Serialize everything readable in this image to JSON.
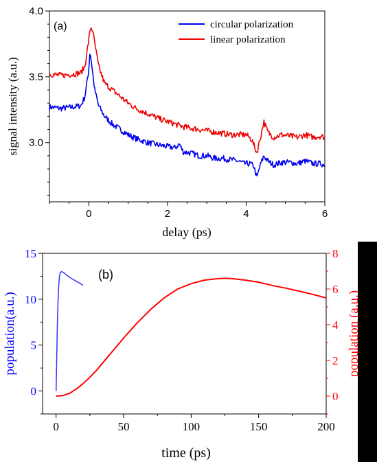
{
  "chart_data": [
    {
      "type": "line",
      "panel_label": "(a)",
      "xlabel": "delay (ps)",
      "ylabel": "signal intensity (a.u.)",
      "xlim": [
        -1,
        6
      ],
      "ylim": [
        2.55,
        4.0
      ],
      "xticks": [
        0,
        2,
        4,
        6
      ],
      "yticks": [
        3.0,
        3.5,
        4.0
      ],
      "xtick_labels": [
        "0",
        "2",
        "4",
        "6"
      ],
      "ytick_labels": [
        "3.0",
        "3.5",
        "4.0"
      ],
      "legend_position": "top-right",
      "grid": false,
      "series": [
        {
          "name": "circular polarization",
          "color": "#0000ee",
          "x": [
            -1.0,
            -0.7,
            -0.4,
            -0.2,
            -0.1,
            0.0,
            0.03,
            0.08,
            0.15,
            0.25,
            0.4,
            0.6,
            0.8,
            1.0,
            1.2,
            1.5,
            1.8,
            2.0,
            2.2,
            2.3,
            2.4,
            2.6,
            2.8,
            3.0,
            3.2,
            3.4,
            3.6,
            3.8,
            3.95,
            4.1,
            4.2,
            4.27,
            4.35,
            4.45,
            4.55,
            4.7,
            4.9,
            5.1,
            5.3,
            5.5,
            5.7,
            5.9,
            6.0
          ],
          "y": [
            3.27,
            3.26,
            3.27,
            3.28,
            3.35,
            3.55,
            3.7,
            3.58,
            3.4,
            3.28,
            3.2,
            3.14,
            3.1,
            3.06,
            3.03,
            3.0,
            2.98,
            2.97,
            2.96,
            2.99,
            2.93,
            2.92,
            2.9,
            2.9,
            2.88,
            2.88,
            2.87,
            2.86,
            2.84,
            2.84,
            2.82,
            2.73,
            2.82,
            2.9,
            2.86,
            2.83,
            2.85,
            2.85,
            2.84,
            2.86,
            2.84,
            2.84,
            2.83
          ]
        },
        {
          "name": "linear polarization",
          "color": "#ee0000",
          "x": [
            -1.0,
            -0.7,
            -0.4,
            -0.2,
            -0.1,
            0.0,
            0.05,
            0.1,
            0.18,
            0.25,
            0.4,
            0.6,
            0.8,
            1.0,
            1.2,
            1.5,
            1.8,
            2.0,
            2.2,
            2.4,
            2.6,
            2.8,
            3.0,
            3.2,
            3.4,
            3.6,
            3.8,
            4.0,
            4.15,
            4.27,
            4.35,
            4.45,
            4.55,
            4.7,
            4.9,
            5.1,
            5.3,
            5.5,
            5.7,
            5.9,
            6.0
          ],
          "y": [
            3.52,
            3.51,
            3.52,
            3.53,
            3.58,
            3.78,
            3.88,
            3.85,
            3.7,
            3.58,
            3.45,
            3.4,
            3.35,
            3.3,
            3.26,
            3.22,
            3.18,
            3.16,
            3.14,
            3.12,
            3.11,
            3.1,
            3.09,
            3.08,
            3.07,
            3.06,
            3.06,
            3.06,
            3.02,
            2.92,
            3.02,
            3.16,
            3.08,
            3.04,
            3.06,
            3.05,
            3.04,
            3.06,
            3.04,
            3.05,
            3.04
          ]
        }
      ]
    },
    {
      "type": "line",
      "panel_label": "(b)",
      "xlabel": "time (ps)",
      "ylabel_left": "population(a.u.)",
      "ylabel_right": "population (a.u.)",
      "xlim": [
        -10,
        200
      ],
      "ylim_left": [
        -2.5,
        15
      ],
      "ylim_right": [
        -1,
        8
      ],
      "xticks": [
        0,
        50,
        100,
        150,
        200
      ],
      "yticks_left": [
        0,
        5,
        10,
        15
      ],
      "yticks_right": [
        0,
        2,
        4,
        6,
        8
      ],
      "xtick_labels": [
        "0",
        "50",
        "100",
        "150",
        "200"
      ],
      "ytick_labels_left": [
        "0",
        "5",
        "10",
        "15"
      ],
      "ytick_labels_right": [
        "0",
        "2",
        "4",
        "6",
        "8"
      ],
      "grid": false,
      "series": [
        {
          "axis": "left",
          "color": "#3333ff",
          "x": [
            0,
            0.5,
            1,
            1.5,
            2,
            2.5,
            3,
            4,
            5,
            6,
            8,
            10,
            12,
            15,
            18,
            20
          ],
          "y": [
            0,
            4,
            7.5,
            10,
            11.6,
            12.5,
            12.9,
            13.0,
            12.95,
            12.85,
            12.6,
            12.4,
            12.2,
            11.95,
            11.7,
            11.5
          ]
        },
        {
          "axis": "right",
          "color": "#ff0000",
          "x": [
            0,
            5,
            10,
            15,
            20,
            25,
            30,
            40,
            50,
            60,
            70,
            80,
            90,
            100,
            110,
            120,
            125,
            130,
            140,
            150,
            160,
            170,
            180,
            190,
            200
          ],
          "y": [
            0,
            0.03,
            0.15,
            0.4,
            0.7,
            1.05,
            1.45,
            2.35,
            3.25,
            4.1,
            4.85,
            5.5,
            6.0,
            6.3,
            6.5,
            6.58,
            6.6,
            6.58,
            6.5,
            6.38,
            6.2,
            6.05,
            5.88,
            5.7,
            5.5
          ]
        }
      ]
    }
  ]
}
